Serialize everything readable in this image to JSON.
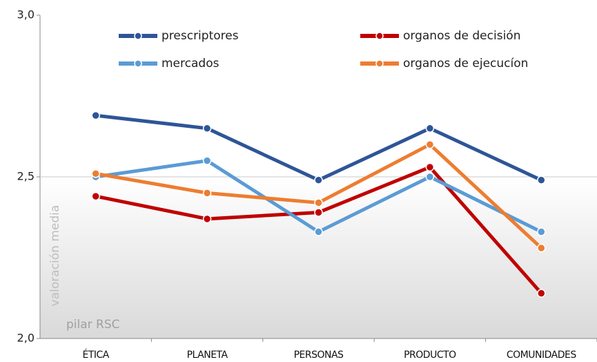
{
  "chart_data": {
    "type": "line",
    "y_label": "valoración media",
    "x_label": "pilar RSC",
    "categories": [
      "ÉTICA",
      "PLANETA",
      "PERSONAS",
      "PRODUCTO",
      "COMUNIDADES"
    ],
    "series": [
      {
        "name": "prescriptores",
        "color": "#2e5597",
        "values": [
          2.69,
          2.65,
          2.49,
          2.65,
          2.49
        ]
      },
      {
        "name": "organos de decisión",
        "color": "#c00000",
        "values": [
          2.44,
          2.37,
          2.39,
          2.53,
          2.14
        ]
      },
      {
        "name": "mercados",
        "color": "#5b9bd5",
        "values": [
          2.5,
          2.55,
          2.33,
          2.5,
          2.33
        ]
      },
      {
        "name": "organos de ejecucíon",
        "color": "#ed7d31",
        "values": [
          2.51,
          2.45,
          2.42,
          2.6,
          2.28
        ]
      }
    ],
    "ylim": [
      2.0,
      3.0
    ],
    "yticks": [
      {
        "value": 2.0,
        "label": "2,0"
      },
      {
        "value": 2.5,
        "label": "2,5"
      },
      {
        "value": 3.0,
        "label": "3,0"
      }
    ],
    "grid": true,
    "legend": "top"
  }
}
